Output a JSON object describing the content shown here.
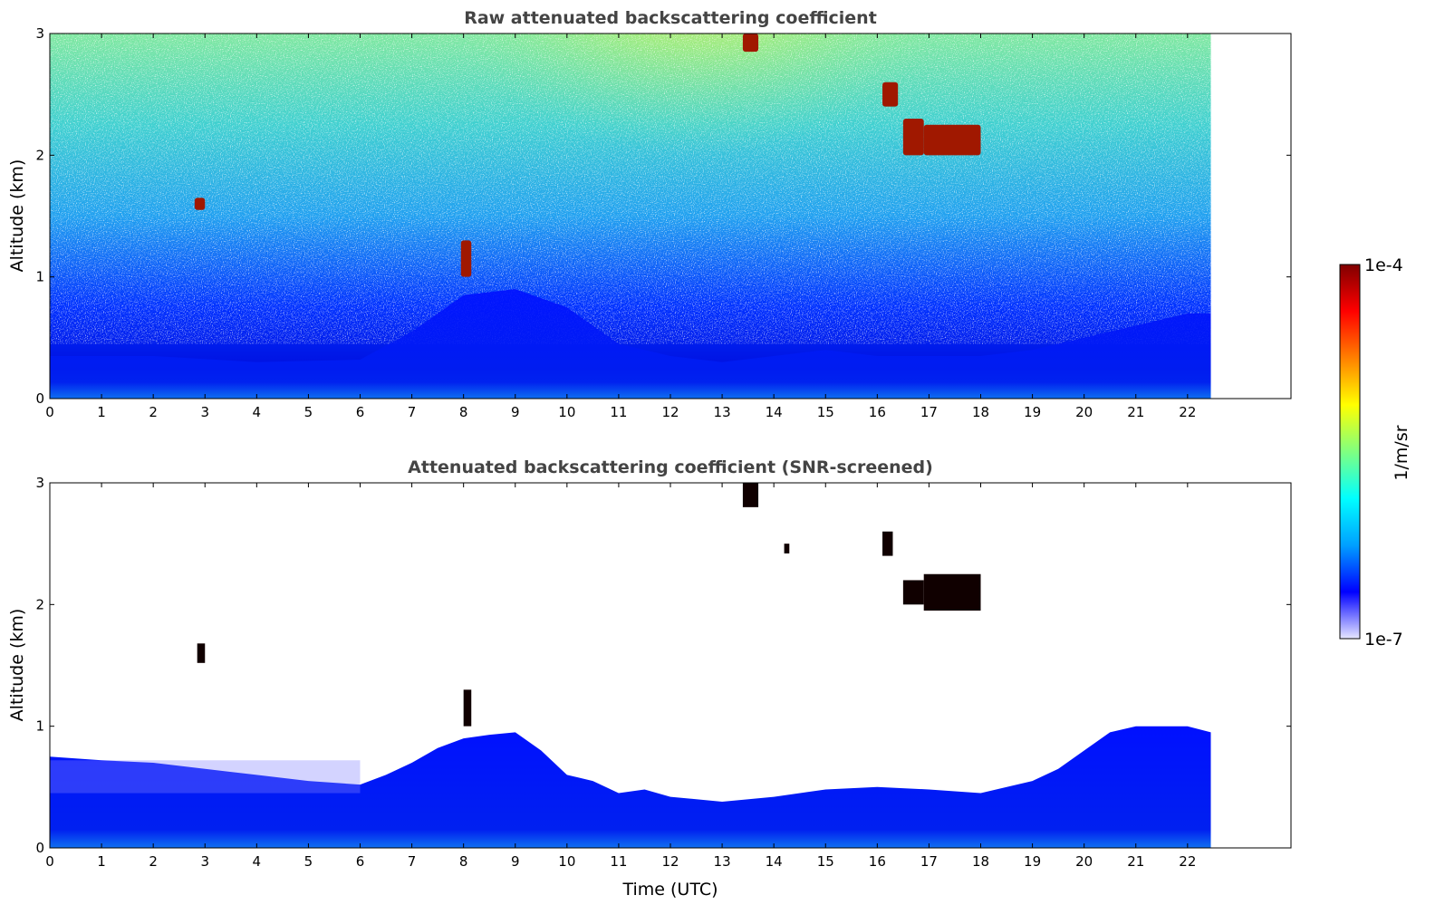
{
  "chart_data": [
    {
      "type": "heatmap",
      "title": "Raw attenuated backscattering coefficient",
      "xlabel": "",
      "ylabel": "Altitude (km)",
      "xlim": [
        0,
        24
      ],
      "ylim": [
        0,
        3
      ],
      "xticks": [
        "0",
        "1",
        "2",
        "3",
        "4",
        "5",
        "6",
        "7",
        "8",
        "9",
        "10",
        "11",
        "12",
        "13",
        "14",
        "15",
        "16",
        "17",
        "18",
        "19",
        "20",
        "21",
        "22"
      ],
      "yticks": [
        "0",
        "1",
        "2",
        "3"
      ],
      "data_end_time": 22.45,
      "mixed_layer_top_km": [
        [
          0,
          0.35
        ],
        [
          2,
          0.35
        ],
        [
          4,
          0.3
        ],
        [
          6,
          0.32
        ],
        [
          7,
          0.55
        ],
        [
          8,
          0.85
        ],
        [
          9,
          0.9
        ],
        [
          10,
          0.75
        ],
        [
          11,
          0.45
        ],
        [
          12,
          0.35
        ],
        [
          13,
          0.3
        ],
        [
          14,
          0.35
        ],
        [
          15,
          0.4
        ],
        [
          16,
          0.35
        ],
        [
          17,
          0.35
        ],
        [
          18,
          0.35
        ],
        [
          19,
          0.4
        ],
        [
          20,
          0.5
        ],
        [
          21,
          0.6
        ],
        [
          22,
          0.7
        ],
        [
          22.45,
          0.7
        ]
      ],
      "clouds": [
        {
          "time": [
            13.4,
            13.7
          ],
          "altitude_km": [
            2.85,
            3.0
          ]
        },
        {
          "time": [
            16.1,
            16.4
          ],
          "altitude_km": [
            2.4,
            2.6
          ]
        },
        {
          "time": [
            16.5,
            16.9
          ],
          "altitude_km": [
            2.0,
            2.3
          ]
        },
        {
          "time": [
            16.9,
            18.0
          ],
          "altitude_km": [
            2.0,
            2.25
          ]
        },
        {
          "time": [
            2.8,
            3.0
          ],
          "altitude_km": [
            1.55,
            1.65
          ]
        },
        {
          "time": [
            7.95,
            8.15
          ],
          "altitude_km": [
            1.0,
            1.3
          ]
        }
      ]
    },
    {
      "type": "heatmap",
      "title": "Attenuated backscattering coefficient (SNR-screened)",
      "xlabel": "Time (UTC)",
      "ylabel": "Altitude (km)",
      "xlim": [
        0,
        24
      ],
      "ylim": [
        0,
        3
      ],
      "xticks": [
        "0",
        "1",
        "2",
        "3",
        "4",
        "5",
        "6",
        "7",
        "8",
        "9",
        "10",
        "11",
        "12",
        "13",
        "14",
        "15",
        "16",
        "17",
        "18",
        "19",
        "20",
        "21",
        "22"
      ],
      "yticks": [
        "0",
        "1",
        "2",
        "3"
      ],
      "data_end_time": 22.45,
      "screened_layer_top_km": [
        [
          0,
          0.75
        ],
        [
          1,
          0.72
        ],
        [
          2,
          0.7
        ],
        [
          3,
          0.65
        ],
        [
          4,
          0.6
        ],
        [
          5,
          0.55
        ],
        [
          6,
          0.52
        ],
        [
          6.5,
          0.6
        ],
        [
          7,
          0.7
        ],
        [
          7.5,
          0.82
        ],
        [
          8,
          0.9
        ],
        [
          8.5,
          0.93
        ],
        [
          9,
          0.95
        ],
        [
          9.5,
          0.8
        ],
        [
          10,
          0.6
        ],
        [
          10.5,
          0.55
        ],
        [
          11,
          0.45
        ],
        [
          11.5,
          0.48
        ],
        [
          12,
          0.42
        ],
        [
          13,
          0.38
        ],
        [
          14,
          0.42
        ],
        [
          15,
          0.48
        ],
        [
          16,
          0.5
        ],
        [
          17,
          0.48
        ],
        [
          18,
          0.45
        ],
        [
          19,
          0.55
        ],
        [
          19.5,
          0.65
        ],
        [
          20,
          0.8
        ],
        [
          20.5,
          0.95
        ],
        [
          21,
          1.0
        ],
        [
          22,
          1.0
        ],
        [
          22.45,
          0.95
        ]
      ],
      "clouds": [
        {
          "time": [
            13.4,
            13.7
          ],
          "altitude_km": [
            2.8,
            3.0
          ]
        },
        {
          "time": [
            16.1,
            16.3
          ],
          "altitude_km": [
            2.4,
            2.6
          ]
        },
        {
          "time": [
            16.5,
            16.9
          ],
          "altitude_km": [
            2.0,
            2.2
          ]
        },
        {
          "time": [
            16.9,
            18.0
          ],
          "altitude_km": [
            1.95,
            2.25
          ]
        },
        {
          "time": [
            2.85,
            3.0
          ],
          "altitude_km": [
            1.52,
            1.68
          ]
        },
        {
          "time": [
            8.0,
            8.15
          ],
          "altitude_km": [
            1.0,
            1.3
          ]
        },
        {
          "time": [
            14.2,
            14.3
          ],
          "altitude_km": [
            2.42,
            2.5
          ]
        }
      ]
    }
  ],
  "colorbar": {
    "label": "1/m/sr",
    "max_label": "1e-4",
    "min_label": "1e-7",
    "colors": [
      "#e6e6ff",
      "#0000ff",
      "#00a0ff",
      "#00ffff",
      "#80ff80",
      "#ffff00",
      "#ff8000",
      "#ff0000",
      "#800000"
    ]
  }
}
